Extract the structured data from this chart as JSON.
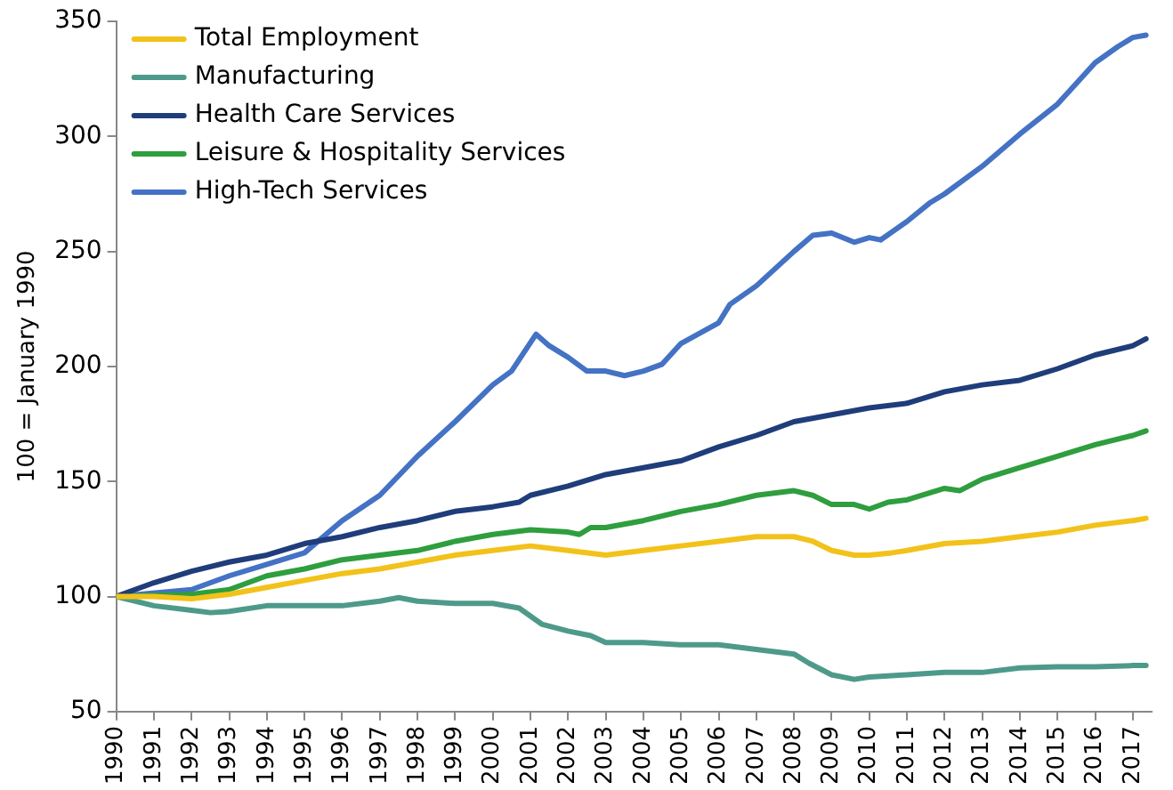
{
  "chart_data": {
    "type": "line",
    "ylabel": "100 = January 1990",
    "legend": "top left",
    "grid": false,
    "marker": "none",
    "xlim": [
      1990,
      2017.5
    ],
    "xticks": [
      1990,
      1991,
      1992,
      1993,
      1994,
      1995,
      1996,
      1997,
      1998,
      1999,
      2000,
      2001,
      2002,
      2003,
      2004,
      2005,
      2006,
      2007,
      2008,
      2009,
      2010,
      2011,
      2012,
      2013,
      2014,
      2015,
      2016,
      2017
    ],
    "ylim": [
      50,
      350
    ],
    "yticks": [
      50,
      100,
      150,
      200,
      250,
      300,
      350
    ],
    "series": [
      {
        "name": "Total Employment",
        "color": "#f2c21b",
        "x": [
          1990,
          1991,
          1992,
          1993,
          1994,
          1995,
          1996,
          1997,
          1998,
          1999,
          2000,
          2001,
          2002,
          2003,
          2004,
          2005,
          2006,
          2007,
          2008,
          2008.5,
          2009,
          2009.6,
          2010,
          2010.6,
          2011,
          2012,
          2013,
          2014,
          2015,
          2016,
          2017,
          2017.35
        ],
        "values": [
          100,
          100,
          99,
          101,
          104,
          107,
          110,
          112,
          115,
          118,
          120,
          122,
          120,
          118,
          120,
          122,
          124,
          126,
          126,
          124,
          120,
          118,
          118,
          119,
          120,
          123,
          124,
          126,
          128,
          131,
          133,
          134
        ]
      },
      {
        "name": "Manufacturing",
        "color": "#4e9a8a",
        "x": [
          1990,
          1991,
          1992,
          1992.5,
          1993,
          1994,
          1995,
          1996,
          1997,
          1997.5,
          1998,
          1999,
          2000,
          2000.7,
          2001.3,
          2002,
          2002.6,
          2003,
          2004,
          2005,
          2006,
          2007,
          2008,
          2008.4,
          2009,
          2009.6,
          2010,
          2011,
          2012,
          2013,
          2014,
          2015,
          2016,
          2017,
          2017.35
        ],
        "values": [
          100,
          96,
          94,
          93,
          93.5,
          96,
          96,
          96,
          98,
          99.5,
          98,
          97,
          97,
          95,
          88,
          85,
          83,
          80,
          80,
          79,
          79,
          77,
          75,
          71,
          66,
          64,
          65,
          66,
          67,
          67,
          69,
          69.5,
          69.5,
          70,
          70
        ]
      },
      {
        "name": "Health Care Services",
        "color": "#1f3d7a",
        "x": [
          1990,
          1991,
          1992,
          1993,
          1994,
          1995,
          1996,
          1997,
          1998,
          1999,
          2000,
          2000.7,
          2001,
          2002,
          2003,
          2004,
          2005,
          2006,
          2007,
          2008,
          2009,
          2010,
          2011,
          2012,
          2013,
          2014,
          2015,
          2016,
          2017,
          2017.35
        ],
        "values": [
          100,
          106,
          111,
          115,
          118,
          123,
          126,
          130,
          133,
          137,
          139,
          141,
          144,
          148,
          153,
          156,
          159,
          165,
          170,
          176,
          179,
          182,
          184,
          189,
          192,
          194,
          199,
          205,
          209,
          212
        ]
      },
      {
        "name": "Leisure & Hospitality Services",
        "color": "#2e9e3e",
        "x": [
          1990,
          1991,
          1992,
          1993,
          1994,
          1995,
          1996,
          1997,
          1998,
          1999,
          2000,
          2001,
          2002,
          2002.3,
          2002.6,
          2003,
          2004,
          2005,
          2006,
          2007,
          2008,
          2008.5,
          2009,
          2009.6,
          2010,
          2010.5,
          2011,
          2012,
          2012.4,
          2013,
          2014,
          2015,
          2016,
          2017,
          2017.35
        ],
        "values": [
          100,
          100.5,
          101,
          103,
          109,
          112,
          116,
          118,
          120,
          124,
          127,
          129,
          128,
          127,
          130,
          130,
          133,
          137,
          140,
          144,
          146,
          144,
          140,
          140,
          138,
          141,
          142,
          147,
          146,
          151,
          156,
          161,
          166,
          170,
          172
        ]
      },
      {
        "name": "High-Tech Services",
        "color": "#4472c4",
        "x": [
          1990,
          1992,
          1993,
          1994,
          1995,
          1996,
          1997,
          1998,
          1999,
          2000,
          2000.5,
          2001.15,
          2001.5,
          2002,
          2002.5,
          2003,
          2003.5,
          2004,
          2004.5,
          2005,
          2006,
          2006.3,
          2007,
          2008,
          2008.5,
          2009,
          2009.6,
          2010,
          2010.3,
          2011,
          2011.6,
          2012,
          2013,
          2014,
          2015,
          2016,
          2016.6,
          2017,
          2017.35
        ],
        "values": [
          100,
          103,
          109,
          114,
          119,
          133,
          144,
          161,
          176,
          192,
          198,
          214,
          209,
          204,
          198,
          198,
          196,
          198,
          201,
          210,
          219,
          227,
          235,
          250,
          257,
          258,
          254,
          256,
          255,
          263,
          271,
          275,
          287,
          301,
          314,
          332,
          339,
          343,
          344
        ]
      }
    ]
  }
}
